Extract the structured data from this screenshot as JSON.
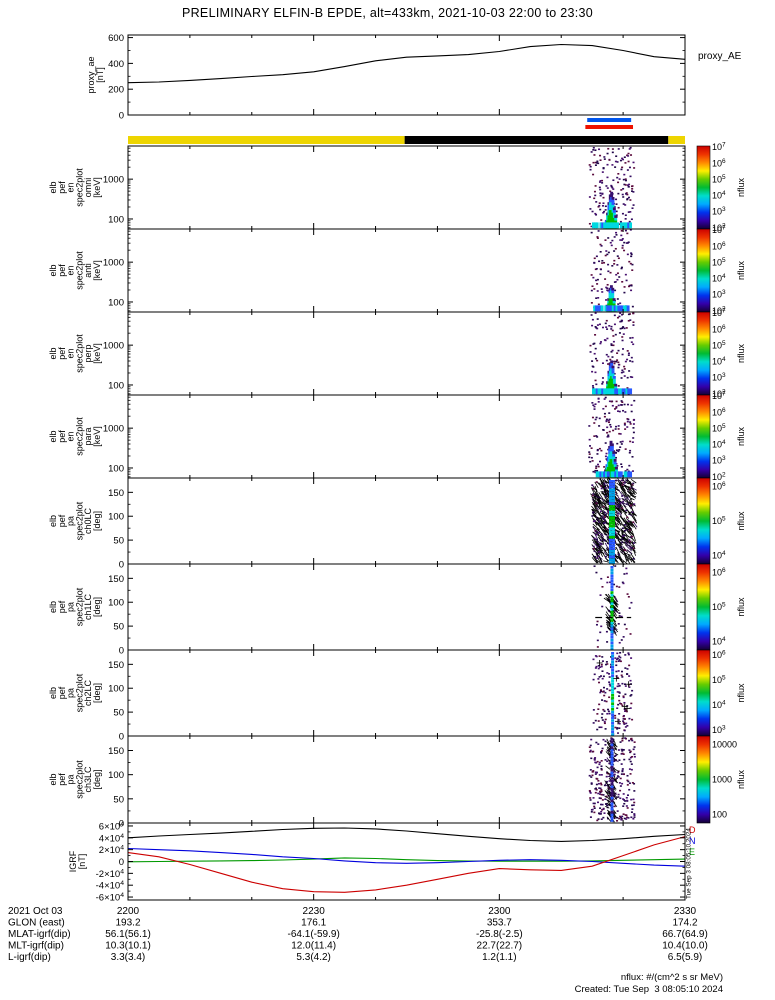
{
  "title": "PRELIMINARY ELFIN-B EPDE, alt=433km, 2021-10-03 22:00 to 23:30",
  "footer": {
    "nflux_note": "nflux: #/(cm^2 s sr MeV)",
    "created": "Created: Tue Sep  3 08:05:10 2024",
    "created_vertical": "Tue Sep  3 08:05:10 2024"
  },
  "time_axis": {
    "date_label": "2021 Oct 03",
    "tick_labels": [
      "2200",
      "2230",
      "2300",
      "2330"
    ],
    "tick_minutes": [
      0,
      30,
      60,
      90
    ],
    "minor_step_minutes": 10,
    "range_minutes": [
      0,
      90
    ],
    "sample_minutes": [
      0,
      5,
      10,
      15,
      20,
      25,
      30,
      35,
      40,
      45,
      50,
      55,
      60,
      65,
      70,
      75,
      80,
      85,
      90
    ]
  },
  "ephemeris": {
    "rows": [
      {
        "label": "GLON (east)",
        "values": [
          "193.2",
          "176.1",
          "353.7",
          "174.2"
        ]
      },
      {
        "label": "MLAT-igrf(dip)",
        "values": [
          "56.1(56.1)",
          "-64.1(-59.9)",
          "-25.8(-2.5)",
          "66.7(64.9)"
        ]
      },
      {
        "label": "MLT-igrf(dip)",
        "values": [
          "10.3(10.1)",
          "12.0(11.4)",
          "22.7(22.7)",
          "10.4(10.0)"
        ]
      },
      {
        "label": "L-igrf(dip)",
        "values": [
          "3.3(3.4)",
          "5.3(4.2)",
          "1.2(1.1)",
          "6.5(5.9)"
        ]
      }
    ]
  },
  "colors": {
    "axis": "#000000",
    "sunlit_yellow": "#eed500",
    "eclipse_black": "#000000",
    "marker_blue": "#0055ee",
    "marker_red": "#ee1100",
    "noise_palette": [
      "#310a5e",
      "#47106f",
      "#21064a",
      "#5a0a3c"
    ],
    "blob_green": "#00c000",
    "blob_cyan": "#00d8e0",
    "blob_blue": "#2858ff",
    "blob_edge": "#38106e",
    "rainbow_top_to_bottom": [
      "#cc0000",
      "#ee3300",
      "#ff8800",
      "#ffee00",
      "#66cc00",
      "#00bb33",
      "#00ddcc",
      "#00aaff",
      "#0033ee",
      "#3300aa",
      "#140033"
    ]
  },
  "chart_data": [
    {
      "id": "proxy_ae",
      "type": "line",
      "ylabel_lines": [
        "proxy_ae",
        "[nT]"
      ],
      "right_label": "proxy_AE",
      "ylim": [
        0,
        620
      ],
      "yticks": [
        0,
        200,
        400,
        600
      ],
      "series": [
        {
          "name": "proxy_AE",
          "color": "#000000",
          "values": [
            250,
            256,
            268,
            282,
            298,
            312,
            335,
            375,
            420,
            448,
            458,
            468,
            492,
            530,
            546,
            538,
            500,
            452,
            432
          ]
        }
      ]
    },
    {
      "id": "science_zone_markers",
      "type": "markers",
      "markers": [
        {
          "name": "collection-marker-blue",
          "t": [
            74.2,
            81.3
          ],
          "color": "#0055ee",
          "row": 0
        },
        {
          "name": "collection-marker-red",
          "t": [
            73.9,
            81.6
          ],
          "color": "#ee1100",
          "row": 1
        }
      ]
    },
    {
      "id": "sunlight_strip",
      "type": "strip",
      "segments": [
        {
          "name": "sunlit-1",
          "t": [
            0,
            44.7
          ],
          "color": "#eed500"
        },
        {
          "name": "eclipse",
          "t": [
            44.7,
            87.3
          ],
          "color": "#000000"
        },
        {
          "name": "sunlit-2",
          "t": [
            87.3,
            90
          ],
          "color": "#eed500"
        }
      ]
    },
    {
      "id": "en_omni",
      "type": "energy-spectrogram",
      "ylabel_lines": [
        "elb",
        "pef",
        "en",
        "spec2plot",
        "omni",
        "[keV]"
      ],
      "yscale": "log",
      "ylim": [
        56,
        6800
      ],
      "yticks": [
        100,
        1000
      ],
      "colorbar": {
        "ticks": [
          "10^7",
          "10^6",
          "10^5",
          "10^4",
          "10^3",
          "10^2"
        ],
        "tick_pos": [
          0.015,
          0.209,
          0.403,
          0.597,
          0.791,
          0.985
        ],
        "label": "nflux"
      },
      "marks": [
        {
          "kind": "specks",
          "t": [
            74.6,
            81.8
          ],
          "y": [
            58,
            6500
          ],
          "n": 180
        },
        {
          "kind": "blob",
          "t": [
            76.6,
            79.6
          ],
          "peak_t": 78.1,
          "base_kev": 57,
          "top_kev": 420
        },
        {
          "kind": "streak",
          "t": [
            75.2,
            81.2
          ],
          "y": [
            57,
            82
          ]
        }
      ]
    },
    {
      "id": "en_anti",
      "type": "energy-spectrogram",
      "ylabel_lines": [
        "elb",
        "pef",
        "en",
        "spec2plot",
        "anti",
        "[keV]"
      ],
      "yscale": "log",
      "ylim": [
        56,
        6800
      ],
      "yticks": [
        100,
        1000
      ],
      "colorbar": {
        "ticks": [
          "10^7",
          "10^6",
          "10^5",
          "10^4",
          "10^3",
          "10^2"
        ],
        "tick_pos": [
          0.015,
          0.209,
          0.403,
          0.597,
          0.791,
          0.985
        ],
        "label": "nflux"
      },
      "marks": [
        {
          "kind": "specks",
          "t": [
            74.8,
            81.6
          ],
          "y": [
            58,
            6500
          ],
          "n": 120
        },
        {
          "kind": "blob",
          "t": [
            77.0,
            79.2
          ],
          "peak_t": 78.1,
          "base_kev": 57,
          "top_kev": 260
        },
        {
          "kind": "streak",
          "t": [
            75.4,
            81.0
          ],
          "y": [
            57,
            82
          ]
        }
      ]
    },
    {
      "id": "en_perp",
      "type": "energy-spectrogram",
      "ylabel_lines": [
        "elb",
        "pef",
        "en",
        "spec2plot",
        "perp",
        "[keV]"
      ],
      "yscale": "log",
      "ylim": [
        56,
        6800
      ],
      "yticks": [
        100,
        1000
      ],
      "colorbar": {
        "ticks": [
          "10^7",
          "10^6",
          "10^5",
          "10^4",
          "10^3",
          "10^2"
        ],
        "tick_pos": [
          0.015,
          0.209,
          0.403,
          0.597,
          0.791,
          0.985
        ],
        "label": "nflux"
      },
      "marks": [
        {
          "kind": "specks",
          "t": [
            74.7,
            81.7
          ],
          "y": [
            58,
            6500
          ],
          "n": 150
        },
        {
          "kind": "blob",
          "t": [
            76.6,
            79.4
          ],
          "peak_t": 78.1,
          "base_kev": 57,
          "top_kev": 380
        },
        {
          "kind": "streak",
          "t": [
            75.2,
            81.2
          ],
          "y": [
            57,
            82
          ]
        }
      ]
    },
    {
      "id": "en_para",
      "type": "energy-spectrogram",
      "ylabel_lines": [
        "elb",
        "pef",
        "en",
        "spec2plot",
        "para",
        "[keV]"
      ],
      "yscale": "log",
      "ylim": [
        56,
        6800
      ],
      "yticks": [
        100,
        1000
      ],
      "colorbar": {
        "ticks": [
          "10^7",
          "10^6",
          "10^5",
          "10^4",
          "10^3",
          "10^2"
        ],
        "tick_pos": [
          0.015,
          0.209,
          0.403,
          0.597,
          0.791,
          0.985
        ],
        "label": "nflux"
      },
      "marks": [
        {
          "kind": "specks",
          "t": [
            74.5,
            81.9
          ],
          "y": [
            58,
            6500
          ],
          "n": 170
        },
        {
          "kind": "blob",
          "t": [
            76.5,
            79.7
          ],
          "peak_t": 78.1,
          "base_kev": 57,
          "top_kev": 430
        },
        {
          "kind": "streak",
          "t": [
            75.2,
            81.4
          ],
          "y": [
            57,
            82
          ]
        }
      ]
    },
    {
      "id": "pa_ch0",
      "type": "pa-spectrogram",
      "ylabel_lines": [
        "elb",
        "pef",
        "pa",
        "spec2plot",
        "ch0LC",
        "[deg]"
      ],
      "ylim": [
        0,
        180
      ],
      "yticks": [
        0,
        50,
        100,
        150
      ],
      "colorbar": {
        "ticks": [
          "10^6",
          "10^5",
          "10^4"
        ],
        "tick_pos": [
          0.1,
          0.5,
          0.9
        ],
        "label": "nflux"
      },
      "marks": [
        {
          "kind": "scribble",
          "t": [
            75.2,
            81.8
          ],
          "y": [
            4,
            176
          ],
          "n": 560
        },
        {
          "kind": "specks",
          "t": [
            75.0,
            81.8
          ],
          "y": [
            4,
            176
          ],
          "n": 120
        },
        {
          "kind": "stripe",
          "t": 78.2,
          "w": 6,
          "bright": true
        }
      ]
    },
    {
      "id": "pa_ch1",
      "type": "pa-spectrogram",
      "ylabel_lines": [
        "elb",
        "pef",
        "pa",
        "spec2plot",
        "ch1LC",
        "[deg]"
      ],
      "ylim": [
        0,
        180
      ],
      "yticks": [
        0,
        50,
        100,
        150
      ],
      "colorbar": {
        "ticks": [
          "10^6",
          "10^5",
          "10^4"
        ],
        "tick_pos": [
          0.1,
          0.5,
          0.9
        ],
        "label": "nflux"
      },
      "marks": [
        {
          "kind": "specks",
          "t": [
            75.0,
            81.5
          ],
          "y": [
            4,
            176
          ],
          "n": 45
        },
        {
          "kind": "scribble",
          "t": [
            77.4,
            79.0
          ],
          "y": [
            35,
            115
          ],
          "n": 70
        },
        {
          "kind": "stripe",
          "t": 78.2,
          "w": 3,
          "bright": true
        },
        {
          "kind": "hline",
          "y": 68,
          "t": [
            75.5,
            81.3
          ]
        }
      ]
    },
    {
      "id": "pa_ch2",
      "type": "pa-spectrogram",
      "ylabel_lines": [
        "elb",
        "pef",
        "pa",
        "spec2plot",
        "ch2LC",
        "[deg]"
      ],
      "ylim": [
        0,
        180
      ],
      "yticks": [
        0,
        50,
        100,
        150
      ],
      "colorbar": {
        "ticks": [
          "10^6",
          "10^5",
          "10^4",
          "10^3"
        ],
        "tick_pos": [
          0.06,
          0.35,
          0.64,
          0.93
        ],
        "label": "nflux"
      },
      "marks": [
        {
          "kind": "specks",
          "t": [
            75.2,
            81.6
          ],
          "y": [
            4,
            176
          ],
          "n": 170
        },
        {
          "kind": "stripe",
          "t": 78.3,
          "w": 3,
          "bright": true
        },
        {
          "kind": "plus",
          "t": [
            76.0,
            81.0
          ],
          "y": [
            20,
            160
          ],
          "n": 6
        }
      ]
    },
    {
      "id": "pa_ch3",
      "type": "pa-spectrogram",
      "ylabel_lines": [
        "elb",
        "pef",
        "pa",
        "spec2plot",
        "ch3LC",
        "[deg]"
      ],
      "ylim": [
        0,
        180
      ],
      "yticks": [
        0,
        50,
        100,
        150
      ],
      "colorbar": {
        "ticks": [
          "10000",
          "1000",
          "100"
        ],
        "tick_pos": [
          0.1,
          0.5,
          0.9
        ],
        "label": "nflux"
      },
      "marks": [
        {
          "kind": "specks",
          "t": [
            74.6,
            81.9
          ],
          "y": [
            4,
            176
          ],
          "n": 280
        },
        {
          "kind": "scribble",
          "t": [
            77.5,
            78.8
          ],
          "y": [
            10,
            170
          ],
          "n": 90
        },
        {
          "kind": "stripe",
          "t": 78.2,
          "w": 3,
          "bright": false
        }
      ]
    },
    {
      "id": "igrf",
      "type": "line",
      "ylabel_lines": [
        "IGRF",
        "[nT]"
      ],
      "ylim": [
        -65000,
        65000
      ],
      "yticks": [
        -60000,
        -40000,
        -20000,
        0,
        20000,
        40000,
        60000
      ],
      "ytick_labels": [
        "-6×10^4",
        "-4×10^4",
        "-2×10^4",
        "0",
        "2×10^4",
        "4×10^4",
        "6×10^4"
      ],
      "series": [
        {
          "name": "E",
          "color": "#009900",
          "values": [
            -500,
            0,
            500,
            1000,
            1500,
            2500,
            4000,
            6000,
            5000,
            3000,
            1500,
            800,
            500,
            500,
            500,
            1000,
            2000,
            3000,
            4000
          ]
        },
        {
          "name": "N",
          "color": "#0000dd",
          "values": [
            22000,
            20000,
            18000,
            15000,
            12000,
            8000,
            5000,
            1000,
            -2000,
            -3000,
            -2000,
            0,
            2000,
            3000,
            2000,
            0,
            -3000,
            -6000,
            -8000
          ]
        },
        {
          "name": "D",
          "color": "#cc0000",
          "values": [
            15000,
            8000,
            -5000,
            -20000,
            -35000,
            -46000,
            -51000,
            -52000,
            -48000,
            -40000,
            -30000,
            -20000,
            -12000,
            -14000,
            -15000,
            -8000,
            10000,
            28000,
            42000
          ]
        },
        {
          "name": "B",
          "color": "#000000",
          "values": [
            40000,
            43000,
            45500,
            48000,
            51000,
            54000,
            56000,
            56500,
            55000,
            51500,
            47000,
            42500,
            38500,
            35500,
            34000,
            35500,
            38500,
            42500,
            45500
          ]
        }
      ],
      "legend": [
        {
          "label": "D",
          "color": "#cc0000"
        },
        {
          "label": "N",
          "color": "#0000dd"
        },
        {
          "label": "E",
          "color": "#009900"
        }
      ]
    }
  ]
}
